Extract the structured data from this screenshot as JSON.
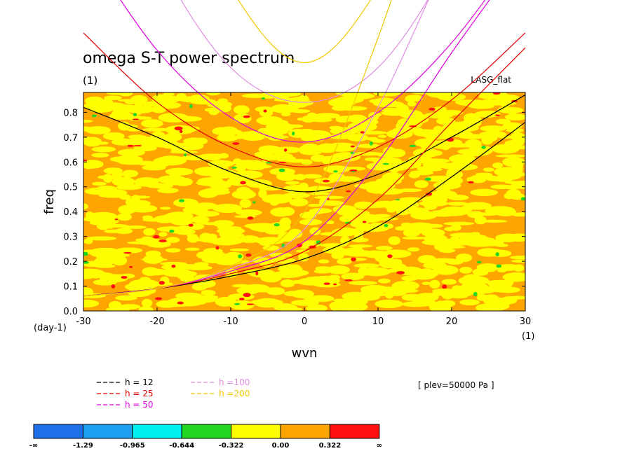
{
  "chart_data": {
    "type": "heatmap",
    "title": "omega S-T power spectrum",
    "subtitle_left": "(1)",
    "subtitle_right": "LASG_flat",
    "xlabel": "wvn",
    "ylabel": "freq",
    "x_unit_label": "(1)",
    "y_unit_label": "(day-1)",
    "xlim": [
      -30,
      30
    ],
    "ylim": [
      0,
      0.88
    ],
    "xticks": [
      -30,
      -20,
      -10,
      0,
      10,
      20,
      30
    ],
    "yticks": [
      0.0,
      0.1,
      0.2,
      0.3,
      0.4,
      0.5,
      0.6,
      0.7,
      0.8
    ],
    "ytick_labels": [
      "0.0",
      "0.1",
      "0.2",
      "0.3",
      "0.4",
      "0.5",
      "0.6",
      "0.7",
      "0.8"
    ],
    "annotation": "[ plev=50000 Pa ]",
    "contour_levels": [
      "-∞",
      "-1.29",
      "-0.965",
      "-0.644",
      "-0.322",
      "0.00",
      "0.322",
      "∞"
    ],
    "level_colors": [
      "#1f6fe8",
      "#1ea0f0",
      "#00f0f0",
      "#22d822",
      "#ffff00",
      "#ffa500",
      "#ff1010"
    ],
    "field_note": "field is dominated by the 0.00–0.322 (orange) and -0.322–0.00 (yellow) bands",
    "series": [
      {
        "name": "h = 12",
        "color": "#000000",
        "kelvin": {
          "x": [
            -30,
            -20,
            -10,
            0,
            10,
            20,
            30
          ],
          "y": [
            0.06,
            0.09,
            0.14,
            0.21,
            0.34,
            0.54,
            0.76
          ]
        },
        "inertia_gravity": {
          "x": [
            -30,
            -20,
            -10,
            0,
            10,
            20,
            30
          ],
          "y": [
            0.82,
            0.7,
            0.56,
            0.48,
            0.55,
            0.7,
            0.87
          ]
        }
      },
      {
        "name": "h = 25",
        "color": "#e00000",
        "kelvin": {
          "x": [
            -30,
            -20,
            -10,
            0,
            10,
            20,
            30
          ],
          "y": [
            0.06,
            0.09,
            0.15,
            0.24,
            0.45,
            0.76,
            1.06
          ]
        },
        "inertia_gravity": {
          "x": [
            -30,
            -20,
            -10,
            0,
            10,
            20,
            30
          ],
          "y": [
            1.12,
            0.84,
            0.66,
            0.58,
            0.66,
            0.85,
            1.12
          ]
        }
      },
      {
        "name": "h = 50",
        "color": "#e000e0",
        "kelvin": {
          "x": [
            -30,
            -20,
            -10,
            0,
            10,
            20,
            30
          ],
          "y": [
            0.06,
            0.09,
            0.16,
            0.28,
            0.6,
            1.04,
            1.45
          ]
        },
        "inertia_gravity": {
          "x": [
            -30,
            -20,
            -10,
            0,
            10,
            20,
            30
          ],
          "y": [
            1.48,
            1.05,
            0.78,
            0.68,
            0.8,
            1.08,
            1.48
          ]
        }
      },
      {
        "name": "h =100",
        "color": "#e08ce0",
        "kelvin": {
          "x": [
            -30,
            -20,
            -10,
            0,
            10,
            20,
            30
          ],
          "y": [
            0.06,
            0.09,
            0.17,
            0.33,
            0.82,
            1.45,
            2.0
          ]
        },
        "inertia_gravity": {
          "x": [
            -30,
            -20,
            -10,
            0,
            10,
            20,
            30
          ],
          "y": [
            2.05,
            1.42,
            0.98,
            0.84,
            0.98,
            1.42,
            2.05
          ]
        }
      },
      {
        "name": "h =200",
        "color": "#f0c800",
        "kelvin": {
          "x": [
            -30,
            -20,
            -10,
            0,
            10,
            20,
            30
          ],
          "y": [
            0.06,
            0.09,
            0.18,
            0.4,
            1.1,
            2.0,
            2.8
          ]
        },
        "inertia_gravity": {
          "x": [
            -30,
            -20,
            -10,
            0,
            10,
            20,
            30
          ],
          "y": [
            2.9,
            1.95,
            1.3,
            1.0,
            1.3,
            1.95,
            2.9
          ]
        }
      }
    ],
    "legend_placement": "bottom-left"
  }
}
